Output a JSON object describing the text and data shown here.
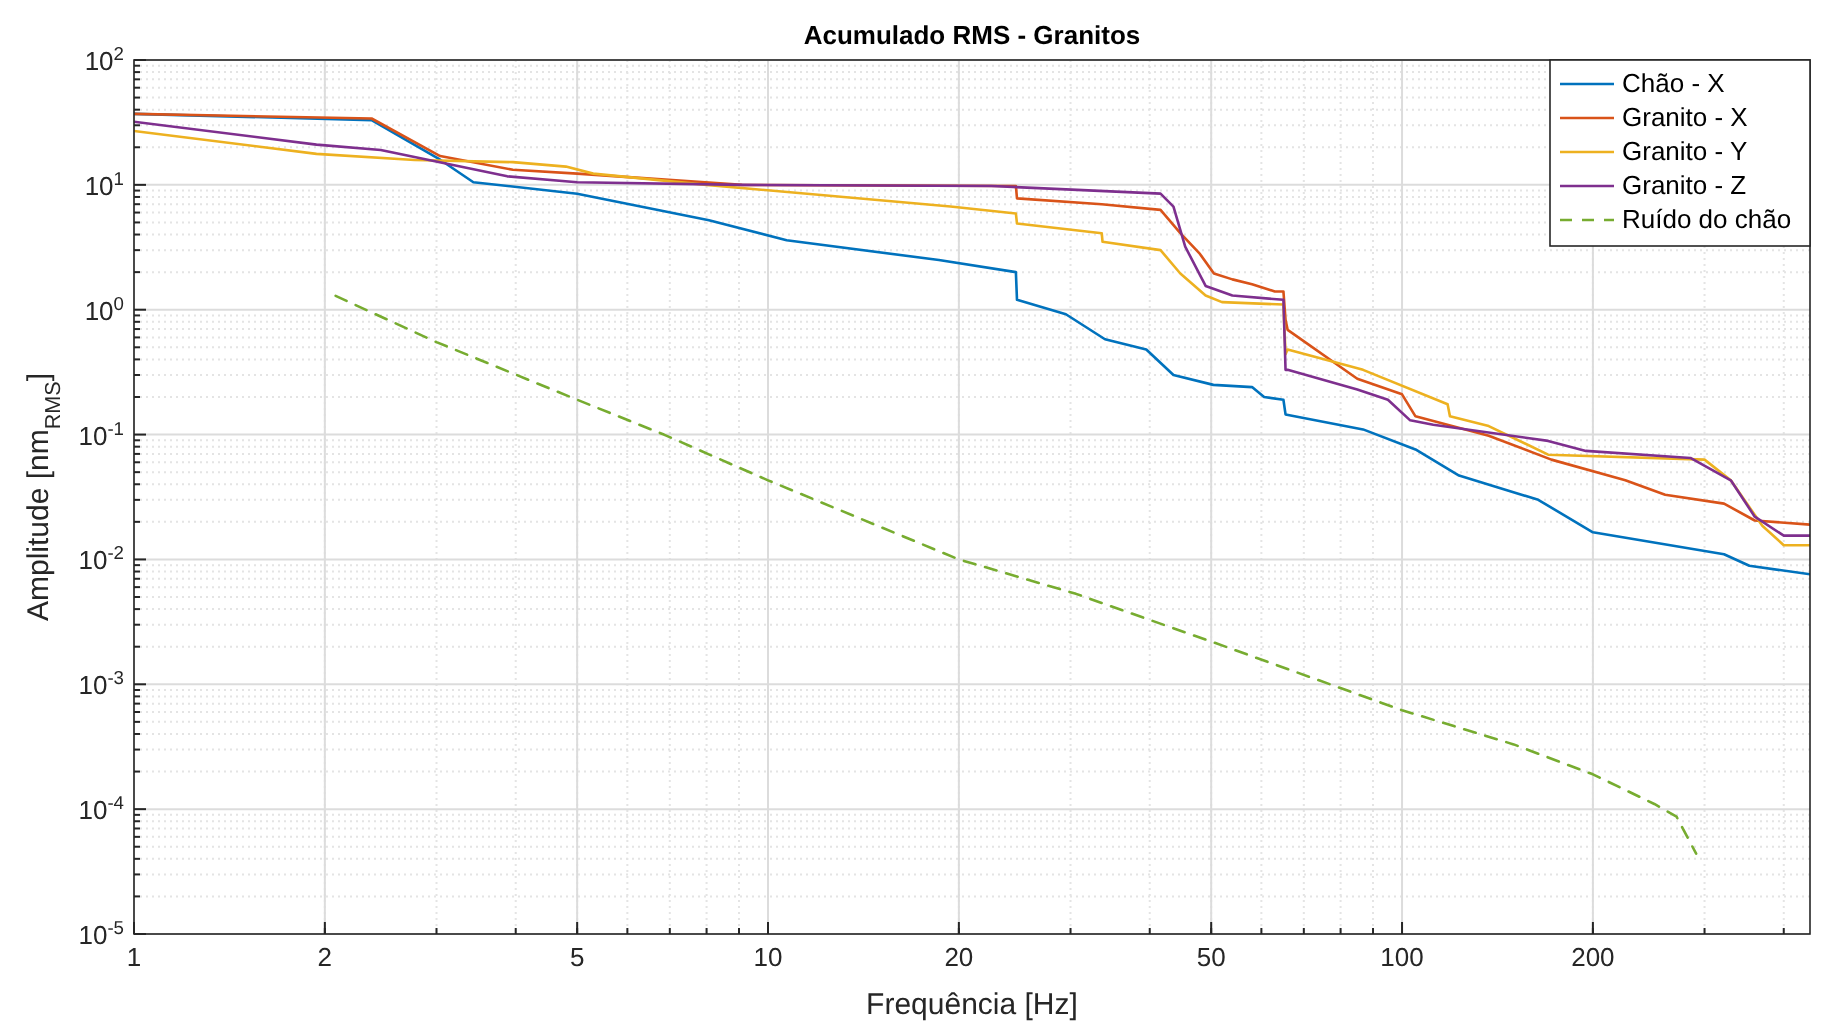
{
  "chart_data": {
    "type": "line",
    "title": "Acumulado RMS - Granitos",
    "xlabel": "Frequência [Hz]",
    "ylabel": "Amplitude [nm$_{RMS}$]",
    "log": "xy",
    "grid": true,
    "legend": "top right",
    "xlim": [
      1,
      440
    ],
    "xticks": [
      1,
      2,
      5,
      10,
      20,
      50,
      100,
      200
    ],
    "ylim": [
      1e-05,
      100
    ],
    "yticks": [
      {
        "value": 1e-05,
        "label": "10$^{-5}$"
      },
      {
        "value": 0.0001,
        "label": "10$^{-4}$"
      },
      {
        "value": 0.001,
        "label": "10$^{-3}$"
      },
      {
        "value": 0.01,
        "label": "10$^{-2}$"
      },
      {
        "value": 0.1,
        "label": "10$^{-1}$"
      },
      {
        "value": 1,
        "label": "10$^{0}$"
      },
      {
        "value": 10,
        "label": "10$^{1}$"
      },
      {
        "value": 100,
        "label": "10$^{2}$"
      }
    ],
    "series": [
      {
        "name": "Chão - X",
        "color": "#0072bd",
        "line_style": "solid",
        "x": [
          1,
          2.37,
          3.04,
          3.43,
          5,
          8.07,
          10.7,
          18.6,
          24.6,
          24.7,
          29.5,
          34,
          39.5,
          43.6,
          50.4,
          58,
          60.6,
          65,
          65.5,
          86.8,
          105,
          123,
          164,
          200,
          322,
          353,
          440
        ],
        "values": [
          37,
          33,
          15.9,
          10.5,
          8.5,
          5.2,
          3.6,
          2.5,
          2.0,
          1.2,
          0.92,
          0.58,
          0.48,
          0.3,
          0.25,
          0.24,
          0.2,
          0.19,
          0.145,
          0.11,
          0.076,
          0.047,
          0.03,
          0.0165,
          0.011,
          0.0089,
          0.0076
        ]
      },
      {
        "name": "Granito - X",
        "color": "#d95319",
        "line_style": "solid",
        "x": [
          1,
          2.37,
          3.04,
          3.96,
          5,
          9.1,
          24.6,
          24.7,
          33.6,
          41.6,
          44.7,
          48,
          50.5,
          54,
          58,
          63,
          65,
          65.5,
          66,
          85,
          100,
          105,
          137,
          172,
          225,
          260,
          322,
          360,
          440
        ],
        "values": [
          37,
          34,
          17,
          13.2,
          12.3,
          10,
          9.8,
          7.8,
          7,
          6.3,
          4.1,
          2.8,
          1.95,
          1.75,
          1.6,
          1.4,
          1.4,
          0.83,
          0.69,
          0.28,
          0.21,
          0.14,
          0.098,
          0.063,
          0.043,
          0.033,
          0.028,
          0.0205,
          0.019
        ]
      },
      {
        "name": "Granito - Y",
        "color": "#edb120",
        "line_style": "solid",
        "x": [
          1,
          1.94,
          2.77,
          3.96,
          4.8,
          5.3,
          8,
          19.4,
          24.6,
          24.7,
          33.6,
          33.7,
          41.6,
          44.7,
          49,
          52,
          65,
          65.5,
          66,
          86.8,
          118,
          119,
          137,
          170,
          300,
          330,
          370,
          400,
          440
        ],
        "values": [
          27,
          17.7,
          15.8,
          15.2,
          14,
          12.3,
          10,
          6.7,
          5.9,
          4.9,
          4.1,
          3.5,
          3.0,
          1.95,
          1.3,
          1.15,
          1.1,
          0.44,
          0.48,
          0.33,
          0.175,
          0.14,
          0.117,
          0.069,
          0.063,
          0.043,
          0.0186,
          0.013,
          0.013
        ]
      },
      {
        "name": "Granito - Z",
        "color": "#7e2f8e",
        "line_style": "solid",
        "x": [
          1,
          1.94,
          2.45,
          3.13,
          3.88,
          5,
          9.1,
          22.5,
          41.6,
          43.6,
          45.5,
          49,
          54,
          65,
          65.5,
          66,
          85,
          95,
          103,
          112,
          170,
          195,
          285,
          330,
          360,
          400,
          440
        ],
        "values": [
          32,
          21,
          19,
          14.7,
          11.7,
          10.5,
          10,
          9.8,
          8.5,
          6.7,
          3.2,
          1.55,
          1.3,
          1.2,
          0.33,
          0.33,
          0.23,
          0.19,
          0.13,
          0.12,
          0.089,
          0.074,
          0.065,
          0.043,
          0.022,
          0.0155,
          0.0155
        ]
      },
      {
        "name": "Ruído do chão",
        "color": "#77ac30",
        "line_style": "dashed",
        "x": [
          2.08,
          3,
          5,
          6.85,
          10,
          20,
          30.6,
          50,
          100,
          150,
          200,
          250,
          271,
          291
        ],
        "values": [
          1.29,
          0.55,
          0.19,
          0.1,
          0.043,
          0.01,
          0.0053,
          0.0022,
          0.00062,
          0.00033,
          0.00019,
          0.00011,
          8.7e-05,
          4.4e-05
        ]
      }
    ]
  }
}
